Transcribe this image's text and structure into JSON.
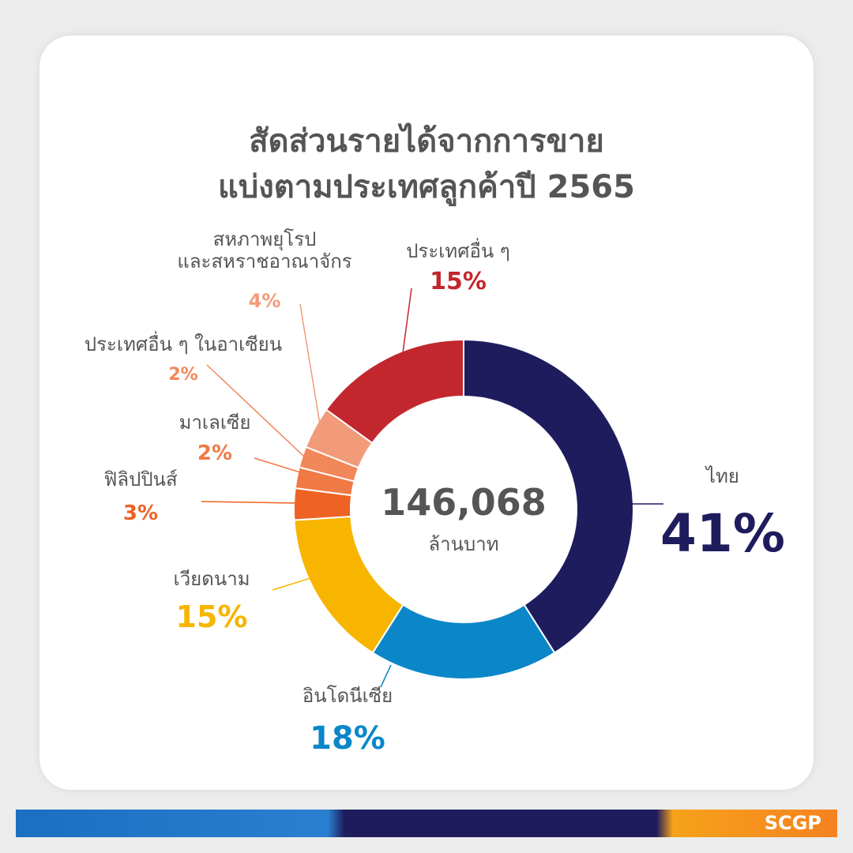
{
  "chart_data": {
    "type": "donut",
    "title": "สัดส่วนรายได้จากการขาย\nแบ่งตามประเทศลูกค้าปี 2565",
    "categories": [
      "ไทย",
      "อินโดนีเซีย",
      "เวียดนาม",
      "ฟิลิปปินส์",
      "มาเลเซีย",
      "ประเทศอื่น ๆ ในอาเซียน",
      "สหภาพยุโรป\nและสหราชอาณาจักร",
      "ประเทศอื่น ๆ"
    ],
    "values": [
      41,
      18,
      15,
      3,
      2,
      2,
      4,
      15
    ],
    "value_labels": [
      "41%",
      "18%",
      "15%",
      "3%",
      "2%",
      "2%",
      "4%",
      "15%"
    ],
    "colors": [
      "#1f1c5e",
      "#0a86c9",
      "#f7b500",
      "#ee6223",
      "#f07a45",
      "#f2875a",
      "#f29b7a",
      "#c1272d"
    ],
    "center_value": "146,068",
    "center_label": "ล้านบาท",
    "logo": "SCGP"
  }
}
